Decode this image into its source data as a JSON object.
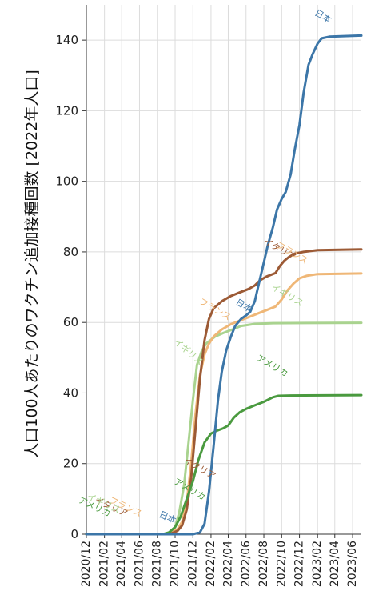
{
  "chart_data": {
    "type": "line",
    "title": "",
    "xlabel": "",
    "ylabel": "人口100人あたりのワクチン追加接種回数 [2022年人口]",
    "ylim": [
      0,
      150
    ],
    "yticks": [
      0,
      20,
      40,
      60,
      80,
      100,
      120,
      140
    ],
    "xlim": [
      "2020-12-01",
      "2023-07-01"
    ],
    "xticks": [
      "2020/12",
      "2021/02",
      "2021/04",
      "2021/06",
      "2021/08",
      "2021/10",
      "2021/12",
      "2022/02",
      "2022/04",
      "2022/06",
      "2022/08",
      "2022/10",
      "2022/12",
      "2023/02",
      "2023/04",
      "2023/06"
    ],
    "grid": true,
    "series": [
      {
        "name": "日本",
        "color": "#3c76a8",
        "points": [
          [
            "2020-12-01",
            0
          ],
          [
            "2021-12-01",
            0
          ],
          [
            "2021-12-25",
            0.5
          ],
          [
            "2022-01-10",
            3
          ],
          [
            "2022-01-25",
            12
          ],
          [
            "2022-02-10",
            25
          ],
          [
            "2022-02-25",
            38
          ],
          [
            "2022-03-10",
            46
          ],
          [
            "2022-03-25",
            52
          ],
          [
            "2022-04-10",
            56
          ],
          [
            "2022-04-25",
            59
          ],
          [
            "2022-05-15",
            61
          ],
          [
            "2022-06-01",
            62
          ],
          [
            "2022-06-15",
            63
          ],
          [
            "2022-07-01",
            66
          ],
          [
            "2022-07-15",
            71
          ],
          [
            "2022-08-01",
            77
          ],
          [
            "2022-08-15",
            82
          ],
          [
            "2022-09-01",
            87
          ],
          [
            "2022-09-15",
            92
          ],
          [
            "2022-10-01",
            95
          ],
          [
            "2022-10-15",
            97
          ],
          [
            "2022-11-01",
            102
          ],
          [
            "2022-11-15",
            109
          ],
          [
            "2022-12-01",
            116
          ],
          [
            "2022-12-15",
            125
          ],
          [
            "2023-01-01",
            133
          ],
          [
            "2023-01-15",
            136
          ],
          [
            "2023-02-01",
            139
          ],
          [
            "2023-02-15",
            140.5
          ],
          [
            "2023-03-15",
            141
          ],
          [
            "2023-07-01",
            141.3
          ]
        ]
      },
      {
        "name": "イタリア",
        "color": "#9c5a35",
        "points": [
          [
            "2020-12-01",
            0
          ],
          [
            "2021-09-01",
            0
          ],
          [
            "2021-09-20",
            0.3
          ],
          [
            "2021-10-10",
            1
          ],
          [
            "2021-10-25",
            2.5
          ],
          [
            "2021-11-10",
            7
          ],
          [
            "2021-11-25",
            16
          ],
          [
            "2021-12-10",
            30
          ],
          [
            "2021-12-25",
            44
          ],
          [
            "2022-01-10",
            55
          ],
          [
            "2022-01-25",
            61
          ],
          [
            "2022-02-10",
            64
          ],
          [
            "2022-03-10",
            66
          ],
          [
            "2022-04-10",
            67.5
          ],
          [
            "2022-05-10",
            68.5
          ],
          [
            "2022-06-10",
            69.5
          ],
          [
            "2022-07-01",
            70.5
          ],
          [
            "2022-07-20",
            72
          ],
          [
            "2022-08-10",
            73
          ],
          [
            "2022-09-10",
            74
          ],
          [
            "2022-09-25",
            76
          ],
          [
            "2022-10-10",
            77.5
          ],
          [
            "2022-10-25",
            78.5
          ],
          [
            "2022-11-15",
            79.5
          ],
          [
            "2022-12-15",
            80
          ],
          [
            "2023-02-01",
            80.5
          ],
          [
            "2023-07-01",
            80.7
          ]
        ]
      },
      {
        "name": "フランス",
        "color": "#efb777",
        "points": [
          [
            "2020-12-01",
            0
          ],
          [
            "2021-09-01",
            0
          ],
          [
            "2021-09-20",
            0.5
          ],
          [
            "2021-10-10",
            1.5
          ],
          [
            "2021-10-25",
            3.5
          ],
          [
            "2021-11-10",
            9
          ],
          [
            "2021-11-25",
            20
          ],
          [
            "2021-12-10",
            34
          ],
          [
            "2021-12-25",
            45
          ],
          [
            "2022-01-10",
            51
          ],
          [
            "2022-01-25",
            54
          ],
          [
            "2022-02-10",
            56
          ],
          [
            "2022-03-10",
            58
          ],
          [
            "2022-04-10",
            59.5
          ],
          [
            "2022-05-10",
            60.5
          ],
          [
            "2022-06-10",
            61.5
          ],
          [
            "2022-07-10",
            62.5
          ],
          [
            "2022-08-10",
            63.5
          ],
          [
            "2022-09-10",
            64.5
          ],
          [
            "2022-10-01",
            66.5
          ],
          [
            "2022-10-20",
            69
          ],
          [
            "2022-11-10",
            71
          ],
          [
            "2022-12-01",
            72.5
          ],
          [
            "2022-12-25",
            73.2
          ],
          [
            "2023-02-01",
            73.7
          ],
          [
            "2023-07-01",
            73.9
          ]
        ]
      },
      {
        "name": "イギリス",
        "color": "#a9d38f",
        "points": [
          [
            "2020-12-01",
            0
          ],
          [
            "2021-09-01",
            0
          ],
          [
            "2021-09-15",
            0.5
          ],
          [
            "2021-10-01",
            2
          ],
          [
            "2021-10-15",
            6
          ],
          [
            "2021-11-01",
            14
          ],
          [
            "2021-11-15",
            25
          ],
          [
            "2021-12-01",
            38
          ],
          [
            "2021-12-15",
            48
          ],
          [
            "2022-01-01",
            52
          ],
          [
            "2022-01-15",
            54
          ],
          [
            "2022-02-15",
            56
          ],
          [
            "2022-03-15",
            57
          ],
          [
            "2022-04-15",
            58
          ],
          [
            "2022-05-15",
            59
          ],
          [
            "2022-07-01",
            59.6
          ],
          [
            "2022-09-01",
            59.8
          ],
          [
            "2023-07-01",
            59.9
          ]
        ]
      },
      {
        "name": "アメリカ",
        "color": "#4a9a3f",
        "points": [
          [
            "2020-12-01",
            0
          ],
          [
            "2021-08-20",
            0
          ],
          [
            "2021-09-10",
            0.5
          ],
          [
            "2021-10-01",
            2
          ],
          [
            "2021-10-20",
            5
          ],
          [
            "2021-11-10",
            10
          ],
          [
            "2021-12-01",
            15
          ],
          [
            "2021-12-20",
            21
          ],
          [
            "2022-01-10",
            26
          ],
          [
            "2022-02-01",
            28.5
          ],
          [
            "2022-02-20",
            29.3
          ],
          [
            "2022-03-15",
            30
          ],
          [
            "2022-04-01",
            30.8
          ],
          [
            "2022-04-20",
            33
          ],
          [
            "2022-05-10",
            34.5
          ],
          [
            "2022-06-01",
            35.5
          ],
          [
            "2022-07-01",
            36.5
          ],
          [
            "2022-08-01",
            37.5
          ],
          [
            "2022-09-01",
            38.8
          ],
          [
            "2022-09-20",
            39.2
          ],
          [
            "2022-11-01",
            39.3
          ],
          [
            "2023-07-01",
            39.4
          ]
        ]
      }
    ],
    "annotations": [
      {
        "text": "日本",
        "x": "2023-02-15",
        "y": 146,
        "series": 0,
        "angle": 30
      },
      {
        "text": "日本",
        "x": "2021-09-01",
        "y": 4,
        "series": 0,
        "angle": 25
      },
      {
        "text": "日本",
        "x": "2022-05-20",
        "y": 64,
        "series": 0,
        "angle": 30
      },
      {
        "text": "イタリア",
        "x": "2022-09-20",
        "y": 80,
        "series": 1,
        "angle": 30
      },
      {
        "text": "イタリア",
        "x": "2021-12-20",
        "y": 18,
        "series": 1,
        "angle": 30
      },
      {
        "text": "イタリア",
        "x": "2021-02-20",
        "y": 7,
        "series": 1,
        "angle": 25
      },
      {
        "text": "フランス",
        "x": "2022-11-01",
        "y": 79,
        "series": 2,
        "angle": 30
      },
      {
        "text": "フランス",
        "x": "2022-02-10",
        "y": 63,
        "series": 2,
        "angle": 30
      },
      {
        "text": "フランス",
        "x": "2021-04-10",
        "y": 7,
        "series": 2,
        "angle": 25
      },
      {
        "text": "イギリス",
        "x": "2022-10-15",
        "y": 67,
        "series": 3,
        "angle": 30
      },
      {
        "text": "イギリス",
        "x": "2021-11-10",
        "y": 51,
        "series": 3,
        "angle": 40
      },
      {
        "text": "イギリス",
        "x": "2021-01-25",
        "y": 8,
        "series": 3,
        "angle": 25
      },
      {
        "text": "アメリカ",
        "x": "2022-08-25",
        "y": 47,
        "series": 4,
        "angle": 30
      },
      {
        "text": "アメリカ",
        "x": "2021-11-15",
        "y": 12,
        "series": 4,
        "angle": 30
      },
      {
        "text": "アメリカ",
        "x": "2020-12-25",
        "y": 7,
        "series": 4,
        "angle": 25
      }
    ]
  }
}
